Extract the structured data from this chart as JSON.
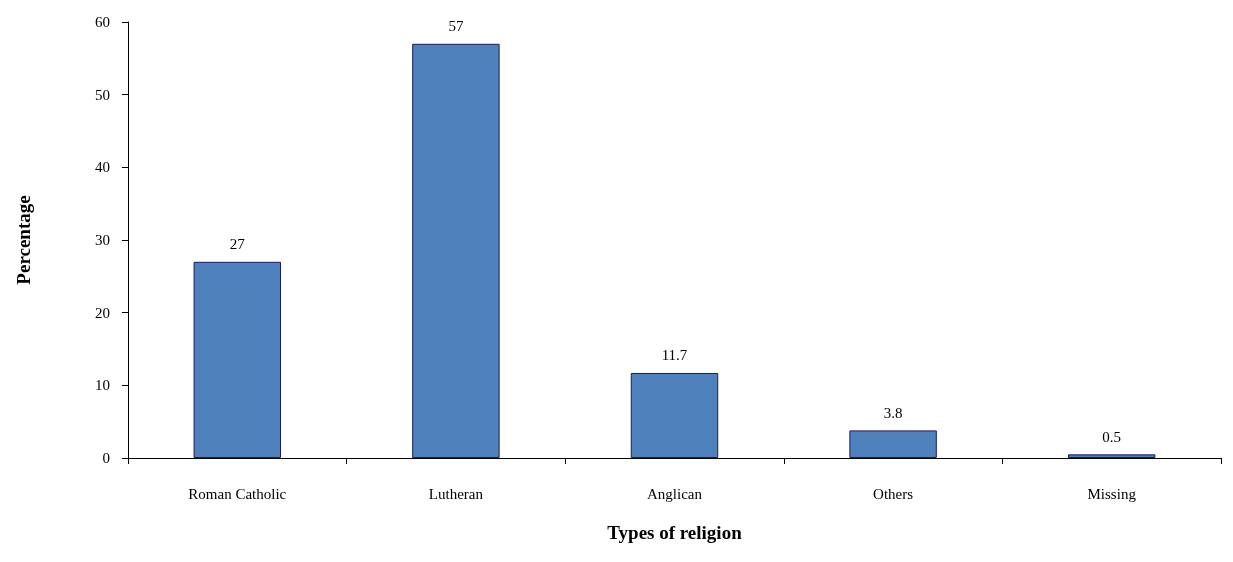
{
  "chart_data": {
    "type": "bar",
    "categories": [
      "Roman Catholic",
      "Lutheran",
      "Anglican",
      "Others",
      "Missing"
    ],
    "values": [
      27,
      57,
      11.7,
      3.8,
      0.5
    ],
    "color": "#4f81bd",
    "xlabel": "Types of religion",
    "ylabel": "Percentage",
    "ylim": [
      0,
      60
    ],
    "yticks": [
      0,
      10,
      20,
      30,
      40,
      50,
      60
    ],
    "data_labels": true
  }
}
